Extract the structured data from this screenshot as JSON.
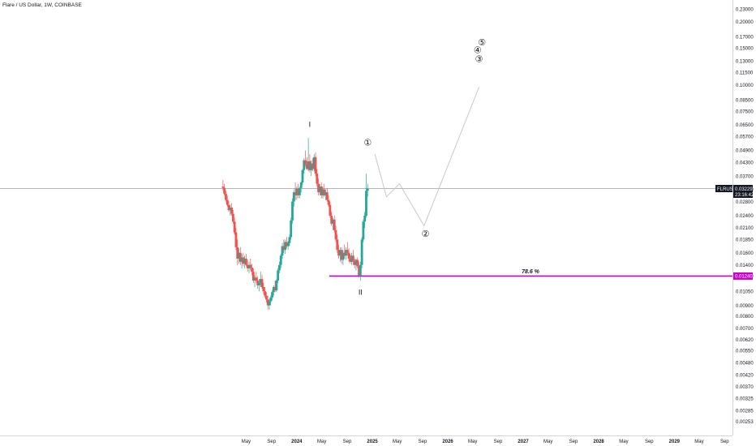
{
  "header": {
    "title": "Flare / US Dollar, 1W, COINBASE"
  },
  "chart_data": {
    "type": "candlestick",
    "scale": "log",
    "ylim": [
      0.00235,
      0.245
    ],
    "y_ticks": [
      "0.23000",
      "0.20000",
      "0.17000",
      "0.15000",
      "0.13000",
      "0.11500",
      "0.10000",
      "0.08500",
      "0.07500",
      "0.06500",
      "0.05700",
      "0.04900",
      "0.04300",
      "0.03700",
      "0.03200",
      "0.02800",
      "0.02400",
      "0.02100",
      "0.01850",
      "0.01600",
      "0.01400",
      "0.01240",
      "0.01050",
      "0.00900",
      "0.00800",
      "0.00700",
      "0.00620",
      "0.00550",
      "0.00480",
      "0.00420",
      "0.00370",
      "0.00325",
      "0.00285",
      "0.00253"
    ],
    "x_ticks": [
      "May",
      "Sep",
      "2024",
      "May",
      "Sep",
      "2025",
      "May",
      "Sep",
      "2026",
      "May",
      "Sep",
      "2027",
      "May",
      "Sep",
      "2028",
      "May",
      "Sep",
      "2029",
      "May",
      "Sep"
    ],
    "x_tick_dates": [
      "2023-05",
      "2023-09",
      "2024-01",
      "2024-05",
      "2024-09",
      "2025-01",
      "2025-05",
      "2025-09",
      "2026-01",
      "2026-05",
      "2026-09",
      "2027-01",
      "2027-05",
      "2027-09",
      "2028-01",
      "2028-05",
      "2028-09",
      "2029-01",
      "2029-05",
      "2029-09"
    ],
    "symbol": {
      "label": "FLRUSD",
      "price": "0.03229",
      "countdown": "23:16:42",
      "value": 0.03229
    },
    "fib_level": {
      "label": "78.6 %",
      "price_label": "0.01240",
      "value": 0.0124,
      "color": "#cc00cc"
    },
    "colors": {
      "up": "#26a69a",
      "down": "#ef5350",
      "projection": "#c8c8c8",
      "last_price_line": "#9e9e9e"
    },
    "wave_labels": [
      {
        "text": "I",
        "date": "2024-03-04",
        "price": 0.065
      },
      {
        "text": "II",
        "date": "2024-11-04",
        "price": 0.0104
      },
      {
        "text": "①",
        "date": "2024-12-09",
        "price": 0.053
      },
      {
        "text": "②",
        "date": "2025-09-15",
        "price": 0.0196
      },
      {
        "text": "③",
        "date": "2026-06-01",
        "price": 0.132
      },
      {
        "text": "④",
        "date": "2026-05-25",
        "price": 0.146
      },
      {
        "text": "⑤",
        "date": "2026-06-15",
        "price": 0.159
      }
    ],
    "projection_path": [
      {
        "date": "2025-01-13",
        "price": 0.047
      },
      {
        "date": "2025-03-10",
        "price": 0.0295
      },
      {
        "date": "2025-05-12",
        "price": 0.034
      },
      {
        "date": "2025-09-08",
        "price": 0.0215
      },
      {
        "date": "2026-06-01",
        "price": 0.098
      }
    ],
    "candles": [
      {
        "d": "2023-01-09",
        "o": 0.033,
        "h": 0.0355,
        "l": 0.0315,
        "c": 0.0325
      },
      {
        "d": "2023-01-16",
        "o": 0.0325,
        "h": 0.034,
        "l": 0.03,
        "c": 0.0305
      },
      {
        "d": "2023-01-23",
        "o": 0.0305,
        "h": 0.0315,
        "l": 0.028,
        "c": 0.0285
      },
      {
        "d": "2023-01-30",
        "o": 0.0285,
        "h": 0.03,
        "l": 0.0265,
        "c": 0.027
      },
      {
        "d": "2023-02-06",
        "o": 0.027,
        "h": 0.0282,
        "l": 0.025,
        "c": 0.0255
      },
      {
        "d": "2023-02-13",
        "o": 0.0255,
        "h": 0.027,
        "l": 0.024,
        "c": 0.0262
      },
      {
        "d": "2023-02-20",
        "o": 0.0262,
        "h": 0.0275,
        "l": 0.024,
        "c": 0.0245
      },
      {
        "d": "2023-02-27",
        "o": 0.0245,
        "h": 0.0255,
        "l": 0.022,
        "c": 0.0225
      },
      {
        "d": "2023-03-06",
        "o": 0.0225,
        "h": 0.0235,
        "l": 0.0195,
        "c": 0.02
      },
      {
        "d": "2023-03-13",
        "o": 0.02,
        "h": 0.021,
        "l": 0.0165,
        "c": 0.017
      },
      {
        "d": "2023-03-20",
        "o": 0.017,
        "h": 0.0185,
        "l": 0.014,
        "c": 0.015
      },
      {
        "d": "2023-03-27",
        "o": 0.015,
        "h": 0.0168,
        "l": 0.0142,
        "c": 0.016
      },
      {
        "d": "2023-04-03",
        "o": 0.016,
        "h": 0.017,
        "l": 0.014,
        "c": 0.0145
      },
      {
        "d": "2023-04-10",
        "o": 0.0145,
        "h": 0.0158,
        "l": 0.0135,
        "c": 0.0152
      },
      {
        "d": "2023-04-17",
        "o": 0.0152,
        "h": 0.016,
        "l": 0.0138,
        "c": 0.0142
      },
      {
        "d": "2023-04-24",
        "o": 0.0142,
        "h": 0.0155,
        "l": 0.0135,
        "c": 0.015
      },
      {
        "d": "2023-05-01",
        "o": 0.015,
        "h": 0.0158,
        "l": 0.0138,
        "c": 0.014
      },
      {
        "d": "2023-05-08",
        "o": 0.014,
        "h": 0.0148,
        "l": 0.013,
        "c": 0.0135
      },
      {
        "d": "2023-05-15",
        "o": 0.0135,
        "h": 0.0145,
        "l": 0.0128,
        "c": 0.014
      },
      {
        "d": "2023-05-22",
        "o": 0.014,
        "h": 0.015,
        "l": 0.0132,
        "c": 0.0136
      },
      {
        "d": "2023-05-29",
        "o": 0.0136,
        "h": 0.0142,
        "l": 0.0125,
        "c": 0.013
      },
      {
        "d": "2023-06-05",
        "o": 0.013,
        "h": 0.0135,
        "l": 0.0115,
        "c": 0.0118
      },
      {
        "d": "2023-06-12",
        "o": 0.0118,
        "h": 0.0125,
        "l": 0.011,
        "c": 0.0122
      },
      {
        "d": "2023-06-19",
        "o": 0.0122,
        "h": 0.013,
        "l": 0.0115,
        "c": 0.0118
      },
      {
        "d": "2023-06-26",
        "o": 0.0118,
        "h": 0.0124,
        "l": 0.0108,
        "c": 0.0112
      },
      {
        "d": "2023-07-03",
        "o": 0.0112,
        "h": 0.012,
        "l": 0.0105,
        "c": 0.0115
      },
      {
        "d": "2023-07-10",
        "o": 0.0115,
        "h": 0.013,
        "l": 0.011,
        "c": 0.012
      },
      {
        "d": "2023-07-17",
        "o": 0.012,
        "h": 0.0126,
        "l": 0.0108,
        "c": 0.011
      },
      {
        "d": "2023-07-24",
        "o": 0.011,
        "h": 0.0115,
        "l": 0.0102,
        "c": 0.0105
      },
      {
        "d": "2023-07-31",
        "o": 0.0105,
        "h": 0.011,
        "l": 0.0098,
        "c": 0.01
      },
      {
        "d": "2023-08-07",
        "o": 0.01,
        "h": 0.0104,
        "l": 0.0093,
        "c": 0.0096
      },
      {
        "d": "2023-08-14",
        "o": 0.0096,
        "h": 0.01,
        "l": 0.0086,
        "c": 0.009
      },
      {
        "d": "2023-08-21",
        "o": 0.009,
        "h": 0.0096,
        "l": 0.0086,
        "c": 0.0094
      },
      {
        "d": "2023-08-28",
        "o": 0.0094,
        "h": 0.01,
        "l": 0.009,
        "c": 0.0098
      },
      {
        "d": "2023-09-04",
        "o": 0.0098,
        "h": 0.0106,
        "l": 0.0095,
        "c": 0.0104
      },
      {
        "d": "2023-09-11",
        "o": 0.0104,
        "h": 0.0112,
        "l": 0.01,
        "c": 0.011
      },
      {
        "d": "2023-09-18",
        "o": 0.011,
        "h": 0.0118,
        "l": 0.0104,
        "c": 0.0106
      },
      {
        "d": "2023-09-25",
        "o": 0.0106,
        "h": 0.012,
        "l": 0.0104,
        "c": 0.0118
      },
      {
        "d": "2023-10-02",
        "o": 0.0118,
        "h": 0.0135,
        "l": 0.0115,
        "c": 0.0132
      },
      {
        "d": "2023-10-09",
        "o": 0.0132,
        "h": 0.0145,
        "l": 0.0128,
        "c": 0.014
      },
      {
        "d": "2023-10-16",
        "o": 0.014,
        "h": 0.0158,
        "l": 0.0135,
        "c": 0.0155
      },
      {
        "d": "2023-10-23",
        "o": 0.0155,
        "h": 0.0178,
        "l": 0.015,
        "c": 0.0172
      },
      {
        "d": "2023-10-30",
        "o": 0.0172,
        "h": 0.0185,
        "l": 0.016,
        "c": 0.0165
      },
      {
        "d": "2023-11-06",
        "o": 0.0165,
        "h": 0.0185,
        "l": 0.0158,
        "c": 0.018
      },
      {
        "d": "2023-11-13",
        "o": 0.018,
        "h": 0.019,
        "l": 0.0168,
        "c": 0.0172
      },
      {
        "d": "2023-11-20",
        "o": 0.0172,
        "h": 0.0182,
        "l": 0.0165,
        "c": 0.0178
      },
      {
        "d": "2023-11-27",
        "o": 0.0178,
        "h": 0.0195,
        "l": 0.0172,
        "c": 0.019
      },
      {
        "d": "2023-12-04",
        "o": 0.019,
        "h": 0.0235,
        "l": 0.0185,
        "c": 0.0228
      },
      {
        "d": "2023-12-11",
        "o": 0.0228,
        "h": 0.029,
        "l": 0.022,
        "c": 0.028
      },
      {
        "d": "2023-12-18",
        "o": 0.028,
        "h": 0.032,
        "l": 0.0265,
        "c": 0.031
      },
      {
        "d": "2023-12-25",
        "o": 0.031,
        "h": 0.0345,
        "l": 0.0285,
        "c": 0.03
      },
      {
        "d": "2024-01-01",
        "o": 0.03,
        "h": 0.033,
        "l": 0.0285,
        "c": 0.0322
      },
      {
        "d": "2024-01-08",
        "o": 0.0322,
        "h": 0.034,
        "l": 0.029,
        "c": 0.03
      },
      {
        "d": "2024-01-15",
        "o": 0.03,
        "h": 0.033,
        "l": 0.029,
        "c": 0.0325
      },
      {
        "d": "2024-01-22",
        "o": 0.0325,
        "h": 0.035,
        "l": 0.031,
        "c": 0.0345
      },
      {
        "d": "2024-01-29",
        "o": 0.0345,
        "h": 0.04,
        "l": 0.0335,
        "c": 0.0395
      },
      {
        "d": "2024-02-05",
        "o": 0.0395,
        "h": 0.045,
        "l": 0.038,
        "c": 0.044
      },
      {
        "d": "2024-02-12",
        "o": 0.044,
        "h": 0.049,
        "l": 0.041,
        "c": 0.042
      },
      {
        "d": "2024-02-19",
        "o": 0.042,
        "h": 0.0455,
        "l": 0.0395,
        "c": 0.04
      },
      {
        "d": "2024-02-26",
        "o": 0.04,
        "h": 0.056,
        "l": 0.039,
        "c": 0.0435
      },
      {
        "d": "2024-03-04",
        "o": 0.0435,
        "h": 0.047,
        "l": 0.0385,
        "c": 0.0395
      },
      {
        "d": "2024-03-11",
        "o": 0.0395,
        "h": 0.044,
        "l": 0.037,
        "c": 0.0425
      },
      {
        "d": "2024-03-18",
        "o": 0.0425,
        "h": 0.045,
        "l": 0.039,
        "c": 0.04
      },
      {
        "d": "2024-03-25",
        "o": 0.04,
        "h": 0.047,
        "l": 0.039,
        "c": 0.0455
      },
      {
        "d": "2024-04-01",
        "o": 0.0455,
        "h": 0.048,
        "l": 0.037,
        "c": 0.038
      },
      {
        "d": "2024-04-08",
        "o": 0.038,
        "h": 0.04,
        "l": 0.033,
        "c": 0.034
      },
      {
        "d": "2024-04-15",
        "o": 0.034,
        "h": 0.036,
        "l": 0.03,
        "c": 0.031
      },
      {
        "d": "2024-04-22",
        "o": 0.031,
        "h": 0.034,
        "l": 0.03,
        "c": 0.033
      },
      {
        "d": "2024-04-29",
        "o": 0.033,
        "h": 0.0345,
        "l": 0.029,
        "c": 0.03
      },
      {
        "d": "2024-05-06",
        "o": 0.03,
        "h": 0.033,
        "l": 0.029,
        "c": 0.032
      },
      {
        "d": "2024-05-13",
        "o": 0.032,
        "h": 0.034,
        "l": 0.0295,
        "c": 0.03
      },
      {
        "d": "2024-05-20",
        "o": 0.03,
        "h": 0.032,
        "l": 0.0285,
        "c": 0.031
      },
      {
        "d": "2024-05-27",
        "o": 0.031,
        "h": 0.0325,
        "l": 0.028,
        "c": 0.0285
      },
      {
        "d": "2024-06-03",
        "o": 0.0285,
        "h": 0.03,
        "l": 0.0265,
        "c": 0.027
      },
      {
        "d": "2024-06-10",
        "o": 0.027,
        "h": 0.028,
        "l": 0.0235,
        "c": 0.024
      },
      {
        "d": "2024-06-17",
        "o": 0.024,
        "h": 0.025,
        "l": 0.0215,
        "c": 0.022
      },
      {
        "d": "2024-06-24",
        "o": 0.022,
        "h": 0.0235,
        "l": 0.0205,
        "c": 0.023
      },
      {
        "d": "2024-07-01",
        "o": 0.023,
        "h": 0.024,
        "l": 0.02,
        "c": 0.0205
      },
      {
        "d": "2024-07-08",
        "o": 0.0205,
        "h": 0.0215,
        "l": 0.018,
        "c": 0.0185
      },
      {
        "d": "2024-07-15",
        "o": 0.0185,
        "h": 0.0195,
        "l": 0.016,
        "c": 0.0165
      },
      {
        "d": "2024-07-22",
        "o": 0.0165,
        "h": 0.0175,
        "l": 0.015,
        "c": 0.0155
      },
      {
        "d": "2024-07-29",
        "o": 0.0155,
        "h": 0.017,
        "l": 0.0145,
        "c": 0.0165
      },
      {
        "d": "2024-08-05",
        "o": 0.0165,
        "h": 0.017,
        "l": 0.0142,
        "c": 0.0148
      },
      {
        "d": "2024-08-12",
        "o": 0.0148,
        "h": 0.0165,
        "l": 0.014,
        "c": 0.016
      },
      {
        "d": "2024-08-19",
        "o": 0.016,
        "h": 0.0175,
        "l": 0.015,
        "c": 0.0155
      },
      {
        "d": "2024-08-26",
        "o": 0.0155,
        "h": 0.017,
        "l": 0.0148,
        "c": 0.0165
      },
      {
        "d": "2024-09-02",
        "o": 0.0165,
        "h": 0.018,
        "l": 0.0155,
        "c": 0.016
      },
      {
        "d": "2024-09-09",
        "o": 0.016,
        "h": 0.0168,
        "l": 0.0145,
        "c": 0.015
      },
      {
        "d": "2024-09-16",
        "o": 0.015,
        "h": 0.0158,
        "l": 0.0142,
        "c": 0.0145
      },
      {
        "d": "2024-09-23",
        "o": 0.0145,
        "h": 0.016,
        "l": 0.014,
        "c": 0.0155
      },
      {
        "d": "2024-09-30",
        "o": 0.0155,
        "h": 0.0165,
        "l": 0.014,
        "c": 0.0145
      },
      {
        "d": "2024-10-07",
        "o": 0.0145,
        "h": 0.015,
        "l": 0.0135,
        "c": 0.014
      },
      {
        "d": "2024-10-14",
        "o": 0.014,
        "h": 0.015,
        "l": 0.0132,
        "c": 0.0148
      },
      {
        "d": "2024-10-21",
        "o": 0.0148,
        "h": 0.0152,
        "l": 0.0135,
        "c": 0.0138
      },
      {
        "d": "2024-10-28",
        "o": 0.0138,
        "h": 0.0145,
        "l": 0.0122,
        "c": 0.0125
      },
      {
        "d": "2024-11-04",
        "o": 0.0125,
        "h": 0.0145,
        "l": 0.0118,
        "c": 0.014
      },
      {
        "d": "2024-11-11",
        "o": 0.014,
        "h": 0.019,
        "l": 0.0135,
        "c": 0.0185
      },
      {
        "d": "2024-11-18",
        "o": 0.0185,
        "h": 0.023,
        "l": 0.018,
        "c": 0.0225
      },
      {
        "d": "2024-11-25",
        "o": 0.0225,
        "h": 0.025,
        "l": 0.021,
        "c": 0.024
      },
      {
        "d": "2024-12-02",
        "o": 0.024,
        "h": 0.038,
        "l": 0.0235,
        "c": 0.0315
      },
      {
        "d": "2024-12-09",
        "o": 0.0315,
        "h": 0.034,
        "l": 0.0295,
        "c": 0.0323
      }
    ]
  }
}
